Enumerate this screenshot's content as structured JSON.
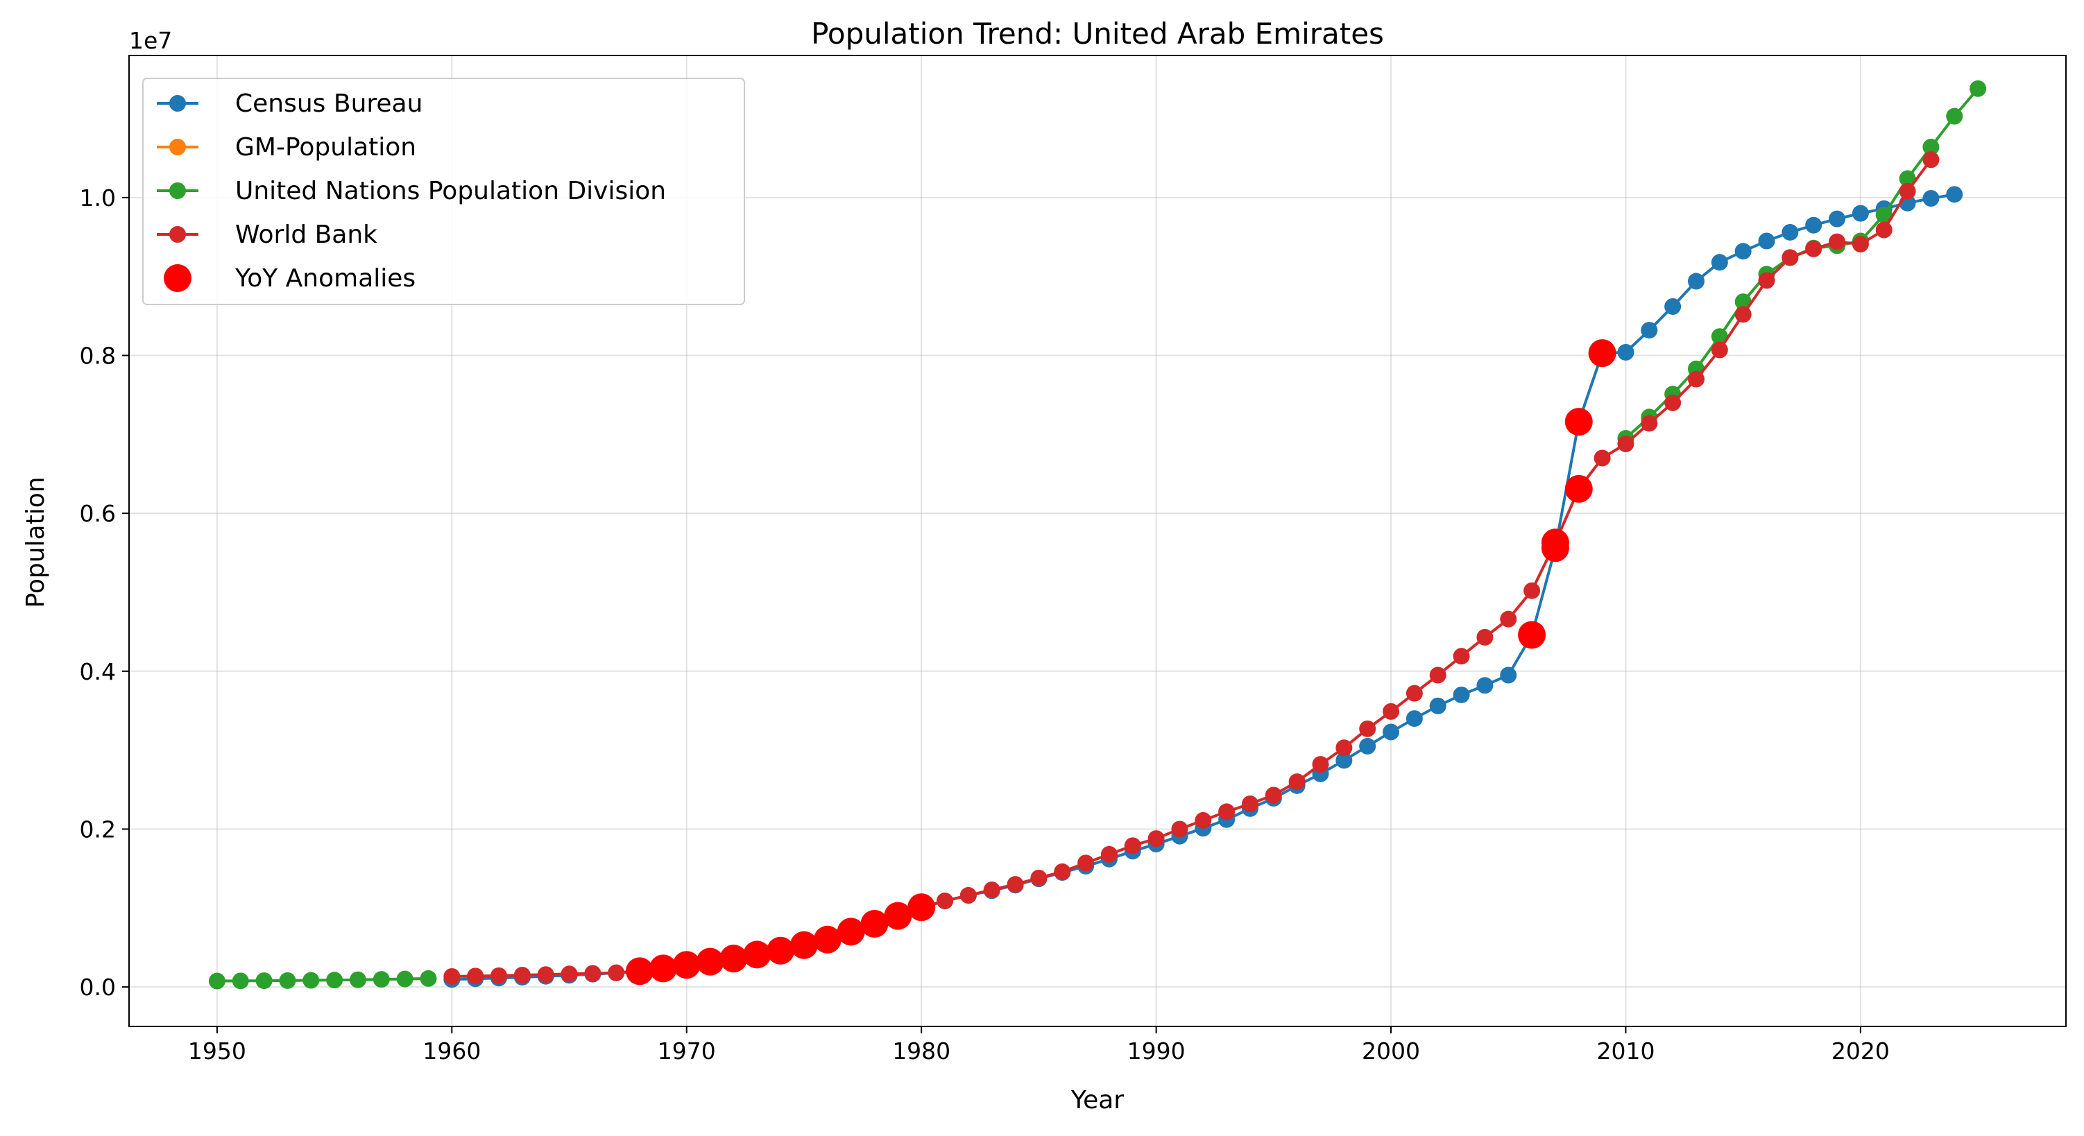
{
  "chart_data": {
    "type": "line",
    "title": "Population Trend: United Arab Emirates",
    "xlabel": "Year",
    "ylabel": "Population",
    "y_offset_label": "1e7",
    "xlim": [
      1946.25,
      2028.75
    ],
    "ylim": [
      -500000,
      11800000
    ],
    "x_ticks": [
      1950,
      1960,
      1970,
      1980,
      1990,
      2000,
      2010,
      2020
    ],
    "x_tick_labels": [
      "1950",
      "1960",
      "1970",
      "1980",
      "1990",
      "2000",
      "2010",
      "2020"
    ],
    "y_ticks": [
      0,
      2000000,
      4000000,
      6000000,
      8000000,
      10000000
    ],
    "y_tick_labels": [
      "0.0",
      "0.2",
      "0.4",
      "0.6",
      "0.8",
      "1.0"
    ],
    "grid": true,
    "legend_position": "upper-left",
    "series": [
      {
        "name": "Census Bureau",
        "color": "#1f77b4",
        "x": [
          1960,
          1961,
          1962,
          1963,
          1964,
          1965,
          1966,
          1967,
          1968,
          1969,
          1970,
          1971,
          1972,
          1973,
          1974,
          1975,
          1976,
          1977,
          1978,
          1979,
          1980,
          1981,
          1982,
          1983,
          1984,
          1985,
          1986,
          1987,
          1988,
          1989,
          1990,
          1991,
          1992,
          1993,
          1994,
          1995,
          1996,
          1997,
          1998,
          1999,
          2000,
          2001,
          2002,
          2003,
          2004,
          2005,
          2006,
          2007,
          2008,
          2009,
          2010,
          2011,
          2012,
          2013,
          2014,
          2015,
          2016,
          2017,
          2018,
          2019,
          2020,
          2021,
          2022,
          2023,
          2024
        ],
        "y": [
          95000,
          104000,
          113000,
          123000,
          135000,
          148000,
          162000,
          178000,
          200000,
          235000,
          280000,
          320000,
          360000,
          410000,
          460000,
          520000,
          590000,
          680000,
          790000,
          890000,
          1000000,
          1090000,
          1160000,
          1220000,
          1290000,
          1370000,
          1450000,
          1530000,
          1620000,
          1720000,
          1810000,
          1910000,
          2010000,
          2120000,
          2260000,
          2390000,
          2550000,
          2700000,
          2870000,
          3050000,
          3230000,
          3400000,
          3560000,
          3700000,
          3820000,
          3950000,
          4460000,
          5560000,
          7160000,
          8030000,
          8040000,
          8320000,
          8620000,
          8940000,
          9180000,
          9320000,
          9450000,
          9560000,
          9650000,
          9730000,
          9800000,
          9860000,
          9930000,
          9990000,
          10040000
        ]
      },
      {
        "name": "GM-Population",
        "color": "#ff7f0e",
        "x": [],
        "y": []
      },
      {
        "name": "United Nations Population Division",
        "color": "#2ca02c",
        "x": [
          1950,
          1951,
          1952,
          1953,
          1954,
          1955,
          1956,
          1957,
          1958,
          1959,
          2010,
          2011,
          2012,
          2013,
          2014,
          2015,
          2016,
          2017,
          2018,
          2019,
          2020,
          2021,
          2022,
          2023,
          2024,
          2025
        ],
        "y": [
          75000,
          77000,
          79000,
          81000,
          84000,
          87000,
          91000,
          96000,
          101000,
          107000,
          6950000,
          7220000,
          7510000,
          7830000,
          8240000,
          8680000,
          9030000,
          9240000,
          9360000,
          9390000,
          9450000,
          9780000,
          10240000,
          10640000,
          11030000,
          11380000
        ]
      },
      {
        "name": "World Bank",
        "color": "#d62728",
        "x": [
          1960,
          1961,
          1962,
          1963,
          1964,
          1965,
          1966,
          1967,
          1968,
          1969,
          1970,
          1971,
          1972,
          1973,
          1974,
          1975,
          1976,
          1977,
          1978,
          1979,
          1980,
          1981,
          1982,
          1983,
          1984,
          1985,
          1986,
          1987,
          1988,
          1989,
          1990,
          1991,
          1992,
          1993,
          1994,
          1995,
          1996,
          1997,
          1998,
          1999,
          2000,
          2001,
          2002,
          2003,
          2004,
          2005,
          2006,
          2007,
          2008,
          2009,
          2010,
          2011,
          2012,
          2013,
          2014,
          2015,
          2016,
          2017,
          2018,
          2019,
          2020,
          2021,
          2022,
          2023
        ],
        "y": [
          133000,
          138000,
          143000,
          150000,
          157000,
          165000,
          172000,
          180000,
          200000,
          235000,
          280000,
          320000,
          360000,
          410000,
          460000,
          530000,
          600000,
          700000,
          800000,
          900000,
          1010000,
          1090000,
          1160000,
          1230000,
          1300000,
          1380000,
          1460000,
          1570000,
          1680000,
          1790000,
          1880000,
          2000000,
          2110000,
          2220000,
          2320000,
          2430000,
          2600000,
          2820000,
          3030000,
          3270000,
          3490000,
          3720000,
          3950000,
          4190000,
          4430000,
          4660000,
          5020000,
          5630000,
          6310000,
          6700000,
          6880000,
          7140000,
          7400000,
          7700000,
          8070000,
          8520000,
          8950000,
          9240000,
          9350000,
          9440000,
          9410000,
          9590000,
          10080000,
          10480000
        ]
      }
    ],
    "anomalies": {
      "name": "YoY Anomalies",
      "color": "#ff0000",
      "x": [
        1968,
        1969,
        1970,
        1971,
        1972,
        1973,
        1974,
        1975,
        1976,
        1977,
        1978,
        1979,
        1980,
        2006,
        2007,
        2007,
        2008,
        2008,
        2009
      ],
      "y": [
        200000,
        235000,
        280000,
        320000,
        360000,
        410000,
        460000,
        530000,
        600000,
        700000,
        800000,
        900000,
        1010000,
        4460000,
        5560000,
        5630000,
        7160000,
        6310000,
        8030000
      ]
    }
  }
}
